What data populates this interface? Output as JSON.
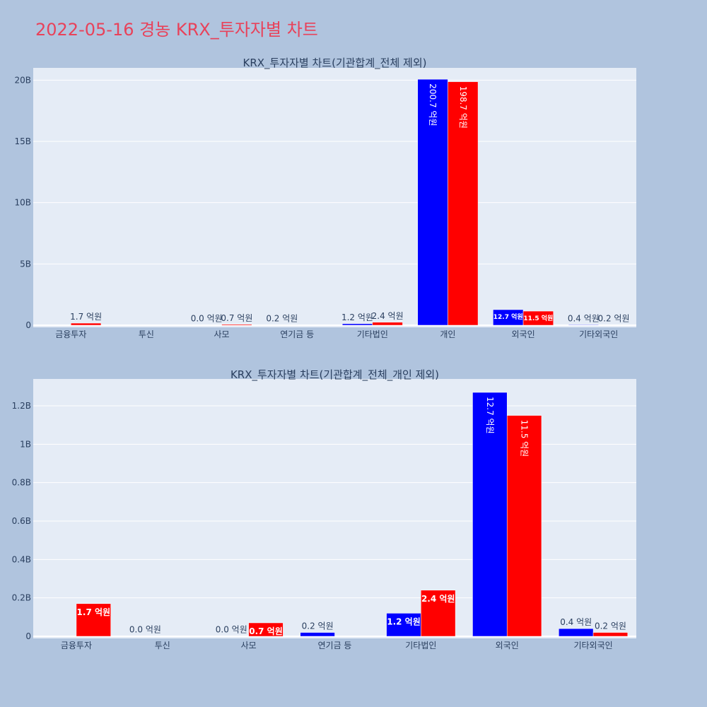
{
  "page": {
    "title": "2022-05-16 경농 KRX_투자자별 차트"
  },
  "style": {
    "plot_bg": "#e5ecf6",
    "blue": "#0000ff",
    "red": "#ff0000",
    "title_color": "#e8425a"
  },
  "chart_data": [
    {
      "type": "bar",
      "title": "KRX_투자자별 차트(기관합계_전체 제외)",
      "categories": [
        "금융투자",
        "투신",
        "사모",
        "연기금 등",
        "기타법인",
        "개인",
        "외국인",
        "기타외국인"
      ],
      "ylim": [
        0,
        21000000000
      ],
      "yticks": [
        0,
        5000000000,
        10000000000,
        15000000000,
        20000000000
      ],
      "ytick_labels": [
        "0",
        "5B",
        "10B",
        "15B",
        "20B"
      ],
      "series": [
        {
          "color": "#0000ff",
          "values": [
            null,
            null,
            0,
            20000000,
            120000000,
            20070000000,
            1270000000,
            40000000
          ],
          "labels": [
            "",
            "",
            "0.0 억원",
            "0.2 억원",
            "1.2 억원",
            "200.7 억원",
            "12.7 억원",
            "0.4 억원"
          ]
        },
        {
          "color": "#ff0000",
          "values": [
            170000000,
            null,
            70000000,
            null,
            240000000,
            19870000000,
            1150000000,
            20000000
          ],
          "labels": [
            "1.7 억원",
            "",
            "0.7 억원",
            "",
            "2.4 억원",
            "198.7 억원",
            "11.5 억원",
            "0.2 억원"
          ]
        }
      ]
    },
    {
      "type": "bar",
      "title": "KRX_투자자별 차트(기관합계_전체_개인 제외)",
      "categories": [
        "금융투자",
        "투신",
        "사모",
        "연기금 등",
        "기타법인",
        "외국인",
        "기타외국인"
      ],
      "ylim": [
        0,
        1340000000
      ],
      "yticks": [
        0,
        200000000,
        400000000,
        600000000,
        800000000,
        1000000000,
        1200000000
      ],
      "ytick_labels": [
        "0",
        "0.2B",
        "0.4B",
        "0.6B",
        "0.8B",
        "1B",
        "1.2B"
      ],
      "series": [
        {
          "color": "#0000ff",
          "values": [
            null,
            0,
            0,
            20000000,
            120000000,
            1270000000,
            40000000
          ],
          "labels": [
            "",
            "0.0 억원",
            "0.0 억원",
            "0.2 억원",
            "1.2 억원",
            "12.7 억원",
            "0.4 억원"
          ]
        },
        {
          "color": "#ff0000",
          "values": [
            170000000,
            null,
            70000000,
            null,
            240000000,
            1150000000,
            20000000
          ],
          "labels": [
            "1.7 억원",
            "",
            "0.7 억원",
            "",
            "2.4 억원",
            "11.5 억원",
            "0.2 억원"
          ]
        }
      ]
    }
  ]
}
